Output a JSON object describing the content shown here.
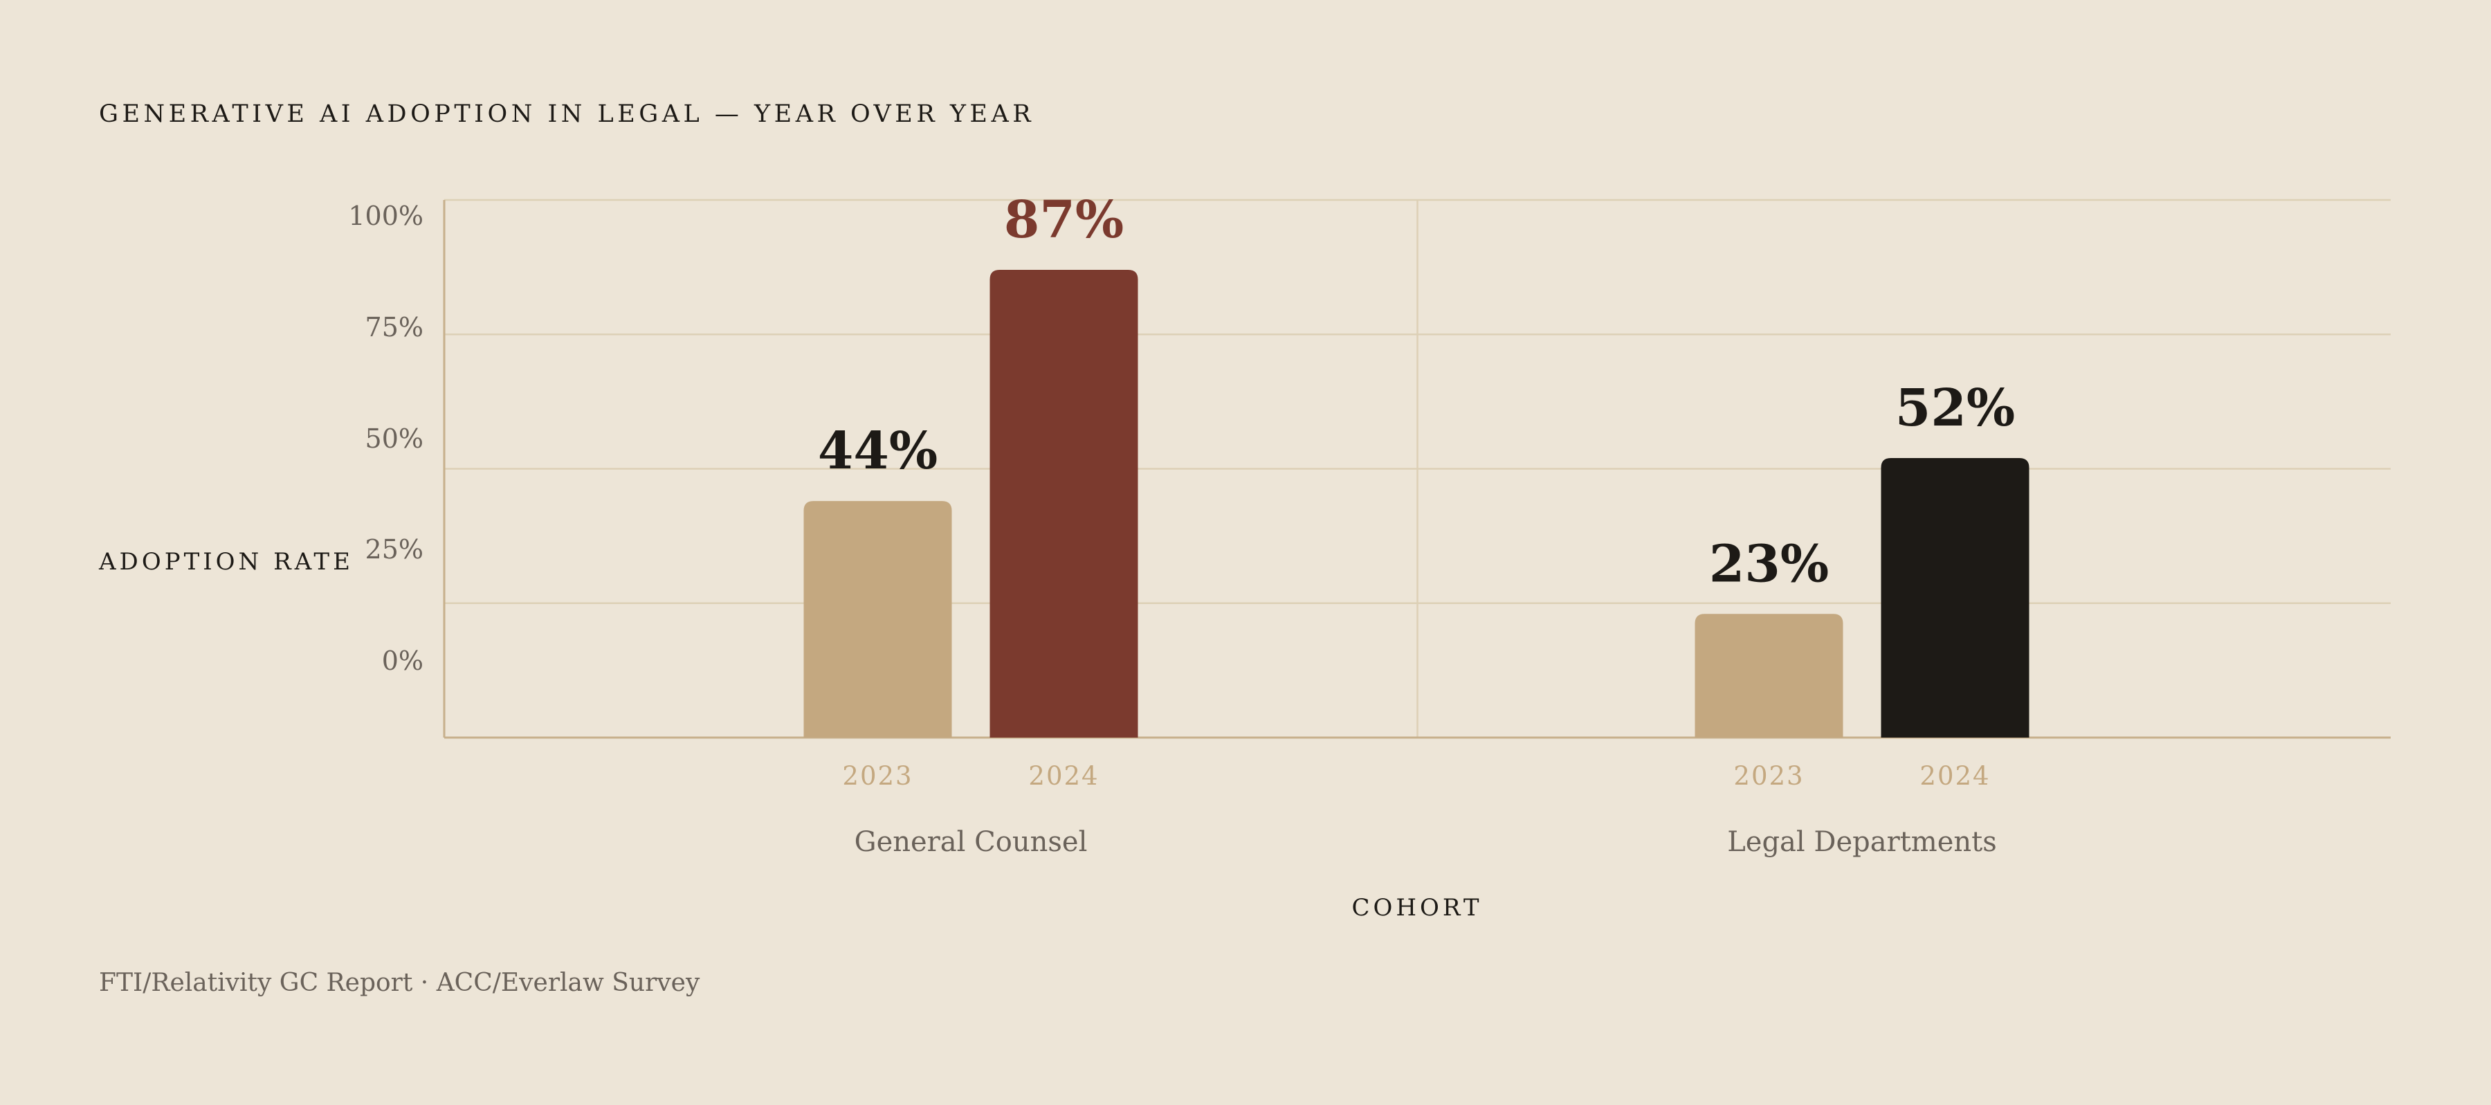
{
  "chart_data": {
    "type": "bar",
    "title": "GENERATIVE AI ADOPTION IN LEGAL — YEAR OVER YEAR",
    "ylabel": "ADOPTION RATE",
    "xlabel": "COHORT",
    "ylim": [
      0,
      100
    ],
    "yticks": [
      "100%",
      "75%",
      "50%",
      "25%",
      "0%"
    ],
    "groups": [
      {
        "name": "General Counsel",
        "bars": [
          {
            "year": "2023",
            "value": 44,
            "label": "44%",
            "color": "#c4a880",
            "label_color": "#1d1a16"
          },
          {
            "year": "2024",
            "value": 87,
            "label": "87%",
            "color": "#7b3a2e",
            "label_color": "#7b3a2e"
          }
        ]
      },
      {
        "name": "Legal Departments",
        "bars": [
          {
            "year": "2023",
            "value": 23,
            "label": "23%",
            "color": "#c4a880",
            "label_color": "#1d1a16"
          },
          {
            "year": "2024",
            "value": 52,
            "label": "52%",
            "color": "#1d1a16",
            "label_color": "#1d1a16"
          }
        ]
      }
    ],
    "source": "FTI/Relativity GC Report · ACC/Everlaw Survey"
  },
  "colors": {
    "background": "#ede5d7",
    "grid": "#ddd0b6",
    "axis": "#c7b08c",
    "tick_text": "#6a625a",
    "year_text": "#c4a880",
    "title_text": "#1d1a16"
  }
}
